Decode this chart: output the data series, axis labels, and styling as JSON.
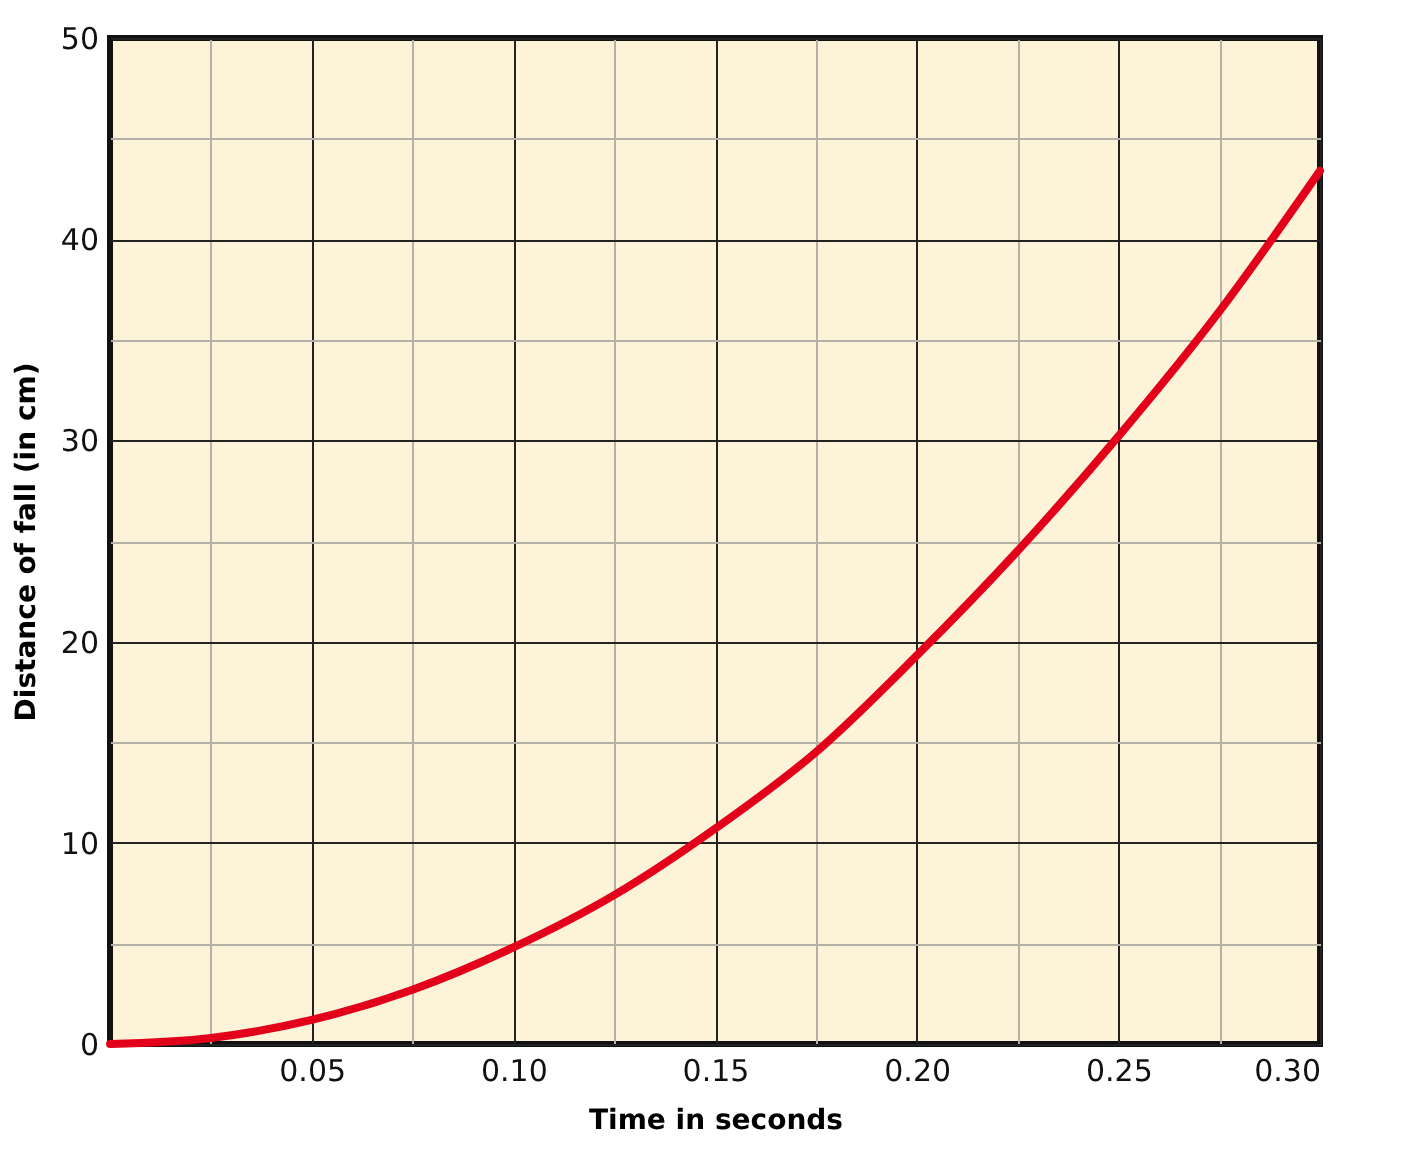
{
  "chart_data": {
    "type": "line",
    "xlabel": "Time in seconds",
    "ylabel": "Distance of fall (in cm)",
    "x": [
      0,
      0.025,
      0.05,
      0.075,
      0.1,
      0.125,
      0.15,
      0.175,
      0.2,
      0.225,
      0.25,
      0.275,
      0.3
    ],
    "series": [
      {
        "color": "#e2001a",
        "values": [
          0,
          0.3,
          1.2,
          2.7,
          4.8,
          7.4,
          10.7,
          14.5,
          19.3,
          24.5,
          30.2,
          36.4,
          43.4
        ]
      }
    ],
    "xlim": [
      0,
      0.3
    ],
    "ylim": [
      0,
      50
    ],
    "xticks": [
      0.05,
      {
        "value": 0.1,
        "label": "0.10"
      },
      0.15,
      {
        "value": 0.2,
        "label": "0.20"
      },
      0.25,
      {
        "value": 0.3,
        "label": "0.30"
      }
    ],
    "yticks": [
      0,
      10,
      20,
      30,
      40,
      50
    ],
    "grid": true,
    "marker": "none",
    "line_style": "solid"
  }
}
